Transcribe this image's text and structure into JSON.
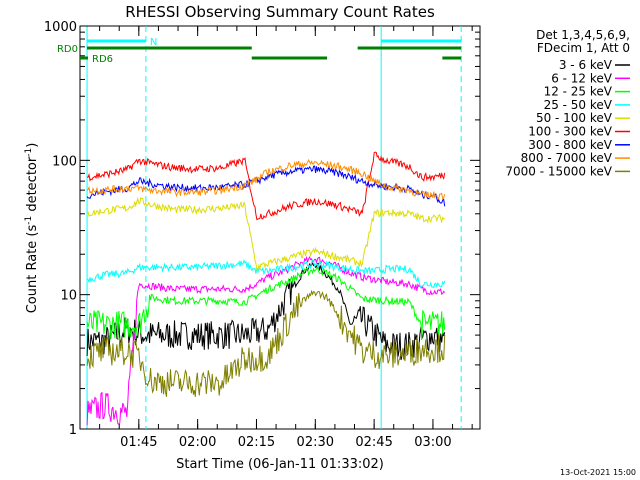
{
  "chart_data": {
    "type": "line",
    "title": "RHESSI Observing Summary Count Rates",
    "xlabel": "Start Time (06-Jan-11 01:33:02)",
    "ylabel_prefix": "Count Rate (s",
    "ylabel_sup1": "-1",
    "ylabel_mid": " detector",
    "ylabel_sup2": "-1",
    "ylabel_suffix": ")",
    "x_range_min": [
      1.5,
      3.2
    ],
    "y_range": [
      1,
      1000
    ],
    "y_scale": "log",
    "x_ticks": [
      {
        "value": 1.75,
        "label": "01:45"
      },
      {
        "value": 2.0,
        "label": "02:00"
      },
      {
        "value": 2.25,
        "label": "02:15"
      },
      {
        "value": 2.5,
        "label": "02:30"
      },
      {
        "value": 2.75,
        "label": "02:45"
      },
      {
        "value": 3.0,
        "label": "03:00"
      }
    ],
    "y_ticks": [
      {
        "value": 1,
        "label": "1"
      },
      {
        "value": 10,
        "label": "10"
      },
      {
        "value": 100,
        "label": "100"
      },
      {
        "value": 1000,
        "label": "1000"
      }
    ],
    "legend_header": [
      "Det 1,3,4,5,6,9,",
      "FDecim 1, Att 0"
    ],
    "legend_placement": "right",
    "series": [
      {
        "name": "3 - 6 keV",
        "color": "#000000",
        "x": [
          1.53,
          1.6,
          1.7,
          1.78,
          1.9,
          2.0,
          2.1,
          2.2,
          2.3,
          2.4,
          2.45,
          2.5,
          2.55,
          2.6,
          2.65,
          2.7,
          2.8,
          2.9,
          3.0,
          3.05
        ],
        "values": [
          4.5,
          4.5,
          5.5,
          5,
          5,
          5,
          5,
          5,
          5.5,
          11,
          15,
          17,
          14,
          11,
          6,
          6.5,
          4.2,
          4.2,
          5,
          4.5
        ]
      },
      {
        "name": "6 - 12 keV",
        "color": "#ff00ff",
        "x": [
          1.53,
          1.6,
          1.7,
          1.75,
          1.9,
          2.0,
          2.2,
          2.25,
          2.3,
          2.35,
          2.4,
          2.45,
          2.5,
          2.55,
          2.6,
          2.65,
          2.7,
          2.8,
          2.9,
          2.95,
          3.0,
          3.05
        ],
        "values": [
          1.3,
          1.5,
          1.3,
          12,
          11,
          11,
          11,
          12,
          13.5,
          14.5,
          16,
          17.5,
          18.5,
          17.5,
          16,
          14.5,
          13.5,
          12.5,
          12,
          11,
          10.5,
          10.5
        ]
      },
      {
        "name": "12 - 25 keV",
        "color": "#00ff00",
        "x": [
          1.53,
          1.6,
          1.75,
          1.8,
          1.9,
          2.0,
          2.1,
          2.2,
          2.3,
          2.4,
          2.45,
          2.5,
          2.55,
          2.6,
          2.65,
          2.7,
          2.8,
          2.9,
          2.95,
          3.0,
          3.05
        ],
        "values": [
          6,
          6,
          6,
          9.5,
          9,
          9,
          9,
          8.8,
          11,
          13,
          14.5,
          15.5,
          14.5,
          13,
          11,
          9.3,
          9,
          8.8,
          6,
          6,
          6
        ]
      },
      {
        "name": "25 - 50 keV",
        "color": "#00ffff",
        "x": [
          1.53,
          1.6,
          1.7,
          1.75,
          1.8,
          1.9,
          2.0,
          2.1,
          2.2,
          2.25,
          2.3,
          2.4,
          2.5,
          2.6,
          2.7,
          2.75,
          2.8,
          2.9,
          2.95,
          3.0,
          3.05
        ],
        "values": [
          13,
          14,
          14.5,
          16,
          16,
          16,
          16,
          16.5,
          17,
          15,
          15,
          16,
          17,
          16,
          15,
          15,
          15.5,
          15.5,
          12,
          12,
          12
        ]
      },
      {
        "name": "50 - 100 keV",
        "color": "#dddd00",
        "x": [
          1.53,
          1.6,
          1.7,
          1.75,
          1.8,
          1.9,
          2.0,
          2.1,
          2.2,
          2.25,
          2.3,
          2.4,
          2.5,
          2.6,
          2.7,
          2.75,
          2.8,
          2.9,
          2.95,
          3.0,
          3.05
        ],
        "values": [
          40,
          42,
          44,
          50,
          47,
          43,
          43,
          44,
          46,
          16,
          17,
          19,
          21,
          19,
          17,
          40,
          41,
          40,
          37,
          37,
          37
        ]
      },
      {
        "name": "100 - 300 keV",
        "color": "#ff0000",
        "x": [
          1.53,
          1.6,
          1.7,
          1.75,
          1.8,
          1.9,
          2.0,
          2.1,
          2.2,
          2.25,
          2.3,
          2.4,
          2.5,
          2.6,
          2.7,
          2.75,
          2.8,
          2.9,
          2.95,
          3.0,
          3.05
        ],
        "values": [
          75,
          78,
          85,
          100,
          95,
          88,
          86,
          88,
          100,
          38,
          40,
          46,
          50,
          46,
          40,
          110,
          100,
          90,
          75,
          75,
          78
        ]
      },
      {
        "name": "300 - 800 keV",
        "color": "#0000ff",
        "x": [
          1.53,
          1.6,
          1.7,
          1.75,
          1.8,
          1.9,
          2.0,
          2.1,
          2.2,
          2.25,
          2.3,
          2.4,
          2.5,
          2.6,
          2.7,
          2.75,
          2.8,
          2.9,
          2.95,
          3.0,
          3.05
        ],
        "values": [
          55,
          58,
          62,
          70,
          67,
          63,
          62,
          63,
          66,
          70,
          76,
          83,
          86,
          80,
          70,
          66,
          64,
          61,
          55,
          55,
          48
        ]
      },
      {
        "name": "800 - 7000 keV",
        "color": "#ff8c00",
        "x": [
          1.53,
          1.6,
          1.7,
          1.75,
          1.8,
          1.9,
          2.0,
          2.1,
          2.2,
          2.25,
          2.3,
          2.4,
          2.5,
          2.6,
          2.7,
          2.75,
          2.8,
          2.9,
          2.95,
          3.0,
          3.05
        ],
        "values": [
          60,
          60,
          62,
          62,
          60,
          58,
          58,
          60,
          65,
          72,
          82,
          92,
          96,
          90,
          80,
          70,
          64,
          60,
          55,
          55,
          55
        ]
      },
      {
        "name": "7000 - 15000 keV",
        "color": "#808000",
        "x": [
          1.53,
          1.6,
          1.7,
          1.75,
          1.8,
          1.9,
          2.0,
          2.1,
          2.2,
          2.3,
          2.4,
          2.45,
          2.5,
          2.55,
          2.6,
          2.7,
          2.8,
          2.9,
          2.95,
          3.0,
          3.05
        ],
        "values": [
          3.5,
          3.8,
          3.8,
          3.5,
          2.3,
          2.2,
          2.2,
          2.2,
          3.3,
          3.5,
          7,
          9,
          10.5,
          9.5,
          7,
          3.8,
          3.5,
          3.7,
          4,
          4,
          4
        ]
      }
    ],
    "status_bars": [
      {
        "label": "N",
        "color": "#00ffff",
        "segments": [
          [
            1.53,
            1.78
          ],
          [
            2.78,
            3.12
          ]
        ]
      },
      {
        "label": "RD0",
        "color": "#008000",
        "segments": [
          [
            1.53,
            2.23
          ],
          [
            2.68,
            3.12
          ]
        ]
      },
      {
        "label": "RD6",
        "color": "#008000",
        "segments": [
          [
            2.23,
            2.55
          ],
          [
            3.04,
            3.12
          ]
        ]
      }
    ],
    "vertical_markers": [
      {
        "x": 1.53,
        "style": "solid",
        "color": "#00ffff"
      },
      {
        "x": 1.78,
        "style": "dashed",
        "color": "#00ffff"
      },
      {
        "x": 2.78,
        "style": "solid",
        "color": "#00ffff"
      },
      {
        "x": 3.12,
        "style": "dashed",
        "color": "#00ffff"
      }
    ]
  },
  "footer": {
    "timestamp": "13-Oct-2021 15:00"
  }
}
